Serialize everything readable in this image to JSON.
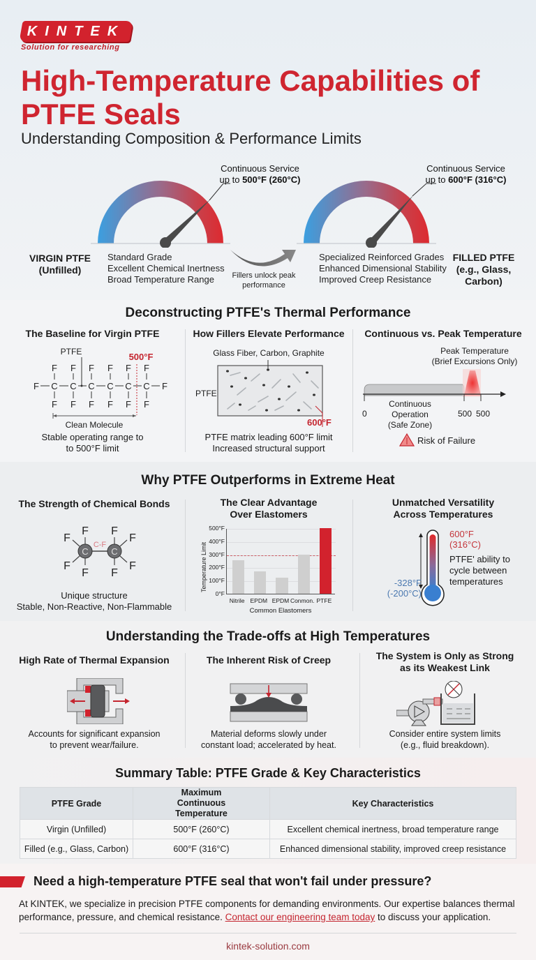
{
  "brand": {
    "logo_text": "KINTEK",
    "tagline": "Solution for researching",
    "accent": "#d2222d"
  },
  "hero": {
    "title": "High-Temperature Capabilities of PTFE Seals",
    "subtitle": "Understanding Composition & Performance Limits",
    "virgin": {
      "callout_line1": "Continuous Service",
      "callout_prefix": "up to ",
      "callout_value": "500°F (260°C)",
      "label_line1": "VIRGIN PTFE",
      "label_line2": "(Unfilled)",
      "features": [
        "Standard Grade",
        "Excellent Chemical Inertness",
        "Broad Temperature Range"
      ]
    },
    "arrow_text_line1": "Fillers unlock peak",
    "arrow_text_line2": "performance",
    "filled": {
      "callout_line1": "Continuous Service",
      "callout_prefix": "up to ",
      "callout_value": "600°F (316°C)",
      "label_line1": "FILLED PTFE",
      "label_line2": "(e.g., Glass,",
      "label_line3": "Carbon)",
      "features": [
        "Specialized Reinforced Grades",
        "Enhanced Dimensional Stability",
        "Improved Creep Resistance"
      ]
    }
  },
  "section1": {
    "heading": "Deconstructing PTFE's Thermal Performance",
    "col1": {
      "heading": "The Baseline for Virgin PTFE",
      "ptfe_label": "PTFE",
      "limit_label": "500°F",
      "range_label": "Clean Molecule",
      "caption_line1": "Stable operating range to",
      "caption_line2": "to 500°F limit"
    },
    "col2": {
      "heading": "How Fillers Elevate Performance",
      "fillers_label": "Glass Fiber, Carbon, Graphite",
      "matrix_label": "PTFE",
      "limit_label": "600°F",
      "caption_line1": "PTFE matrix leading 600°F limit",
      "caption_line2": "Increased structural support"
    },
    "col3": {
      "heading": "Continuous vs. Peak Temperature",
      "peak_line1": "Peak Temperature",
      "peak_line2": "(Brief Excursions Only)",
      "zone_line1": "Continuous Operation",
      "zone_line2": "(Safe Zone)",
      "tick0": "0",
      "tick1": "500",
      "tick2": "500",
      "risk_label": "Risk of Failure"
    }
  },
  "section2": {
    "heading": "Why PTFE Outperforms in Extreme Heat",
    "col1": {
      "heading": "The Strength of Chemical Bonds",
      "bond_label": "C-F",
      "atom": "C",
      "fluorine": "F",
      "caption_line1": "Unique structure",
      "caption_line2": "Stable, Non-Reactive, Non-Flammable"
    },
    "col2": {
      "heading_line1": "The Clear Advantage",
      "heading_line2": "Over Elastomers"
    },
    "col3": {
      "heading_line1": "Unmatched Versatility",
      "heading_line2": "Across Temperatures",
      "high_f": "600°F",
      "high_c": "(316°C)",
      "low_f": "-328°F",
      "low_c": "(-200°C)",
      "desc_line1": "PTFE' ability to",
      "desc_line2": "cycle between",
      "desc_line3": "temperatures"
    }
  },
  "chart_data": {
    "type": "bar",
    "title": "The Clear Advantage Over Elastomers",
    "categories": [
      "Nitrile",
      "EPDM",
      "EPDM",
      "Conmon.",
      "PTFE"
    ],
    "values": [
      255,
      170,
      120,
      300,
      500
    ],
    "colors": [
      "#cfcfcf",
      "#cfcfcf",
      "#cfcfcf",
      "#cfcfcf",
      "#d2222d"
    ],
    "xlabel": "Common Elastomers",
    "ylabel": "Temperature Limit",
    "yticks": [
      "0°F",
      "100°F",
      "200°F",
      "300°F",
      "400°F",
      "500°F"
    ],
    "ylim": [
      0,
      500
    ],
    "reference_line": 300,
    "grid": true
  },
  "section3": {
    "heading": "Understanding the Trade-offs at High Temperatures",
    "col1": {
      "heading": "High Rate of Thermal Expansion",
      "caption_line1": "Accounts for significant expansion",
      "caption_line2": "to prevent wear/failure."
    },
    "col2": {
      "heading": "The Inherent Risk of Creep",
      "caption_line1": "Material deforms slowly under",
      "caption_line2": "constant load; accelerated by heat."
    },
    "col3": {
      "heading_line1": "The System is Only as Strong",
      "heading_line2": "as its Weakest Link",
      "caption_line1": "Consider entire system limits",
      "caption_line2": "(e.g., fluid breakdown)."
    }
  },
  "table": {
    "heading": "Summary Table: PTFE Grade & Key Characteristics",
    "headers": [
      "PTFE Grade",
      "Maximum Continuous Temperature",
      "Key Characteristics"
    ],
    "rows": [
      [
        "Virgin (Unfilled)",
        "500°F (260°C)",
        "Excellent chemical inertness, broad temperature range"
      ],
      [
        "Filled (e.g., Glass, Carbon)",
        "600°F (316°C)",
        "Enhanced dimensional stability, improved creep resistance"
      ]
    ]
  },
  "cta": {
    "heading": "Need a high-temperature PTFE seal that won't fail under pressure?",
    "body_part1": "At KINTEK, we specialize in precision PTFE components for demanding environments. Our expertise balances thermal performance, pressure, and chemical resistance. ",
    "link_text": "Contact our engineering team today",
    "body_part2": " to discuss your application.",
    "website": "kintek-solution.com"
  }
}
